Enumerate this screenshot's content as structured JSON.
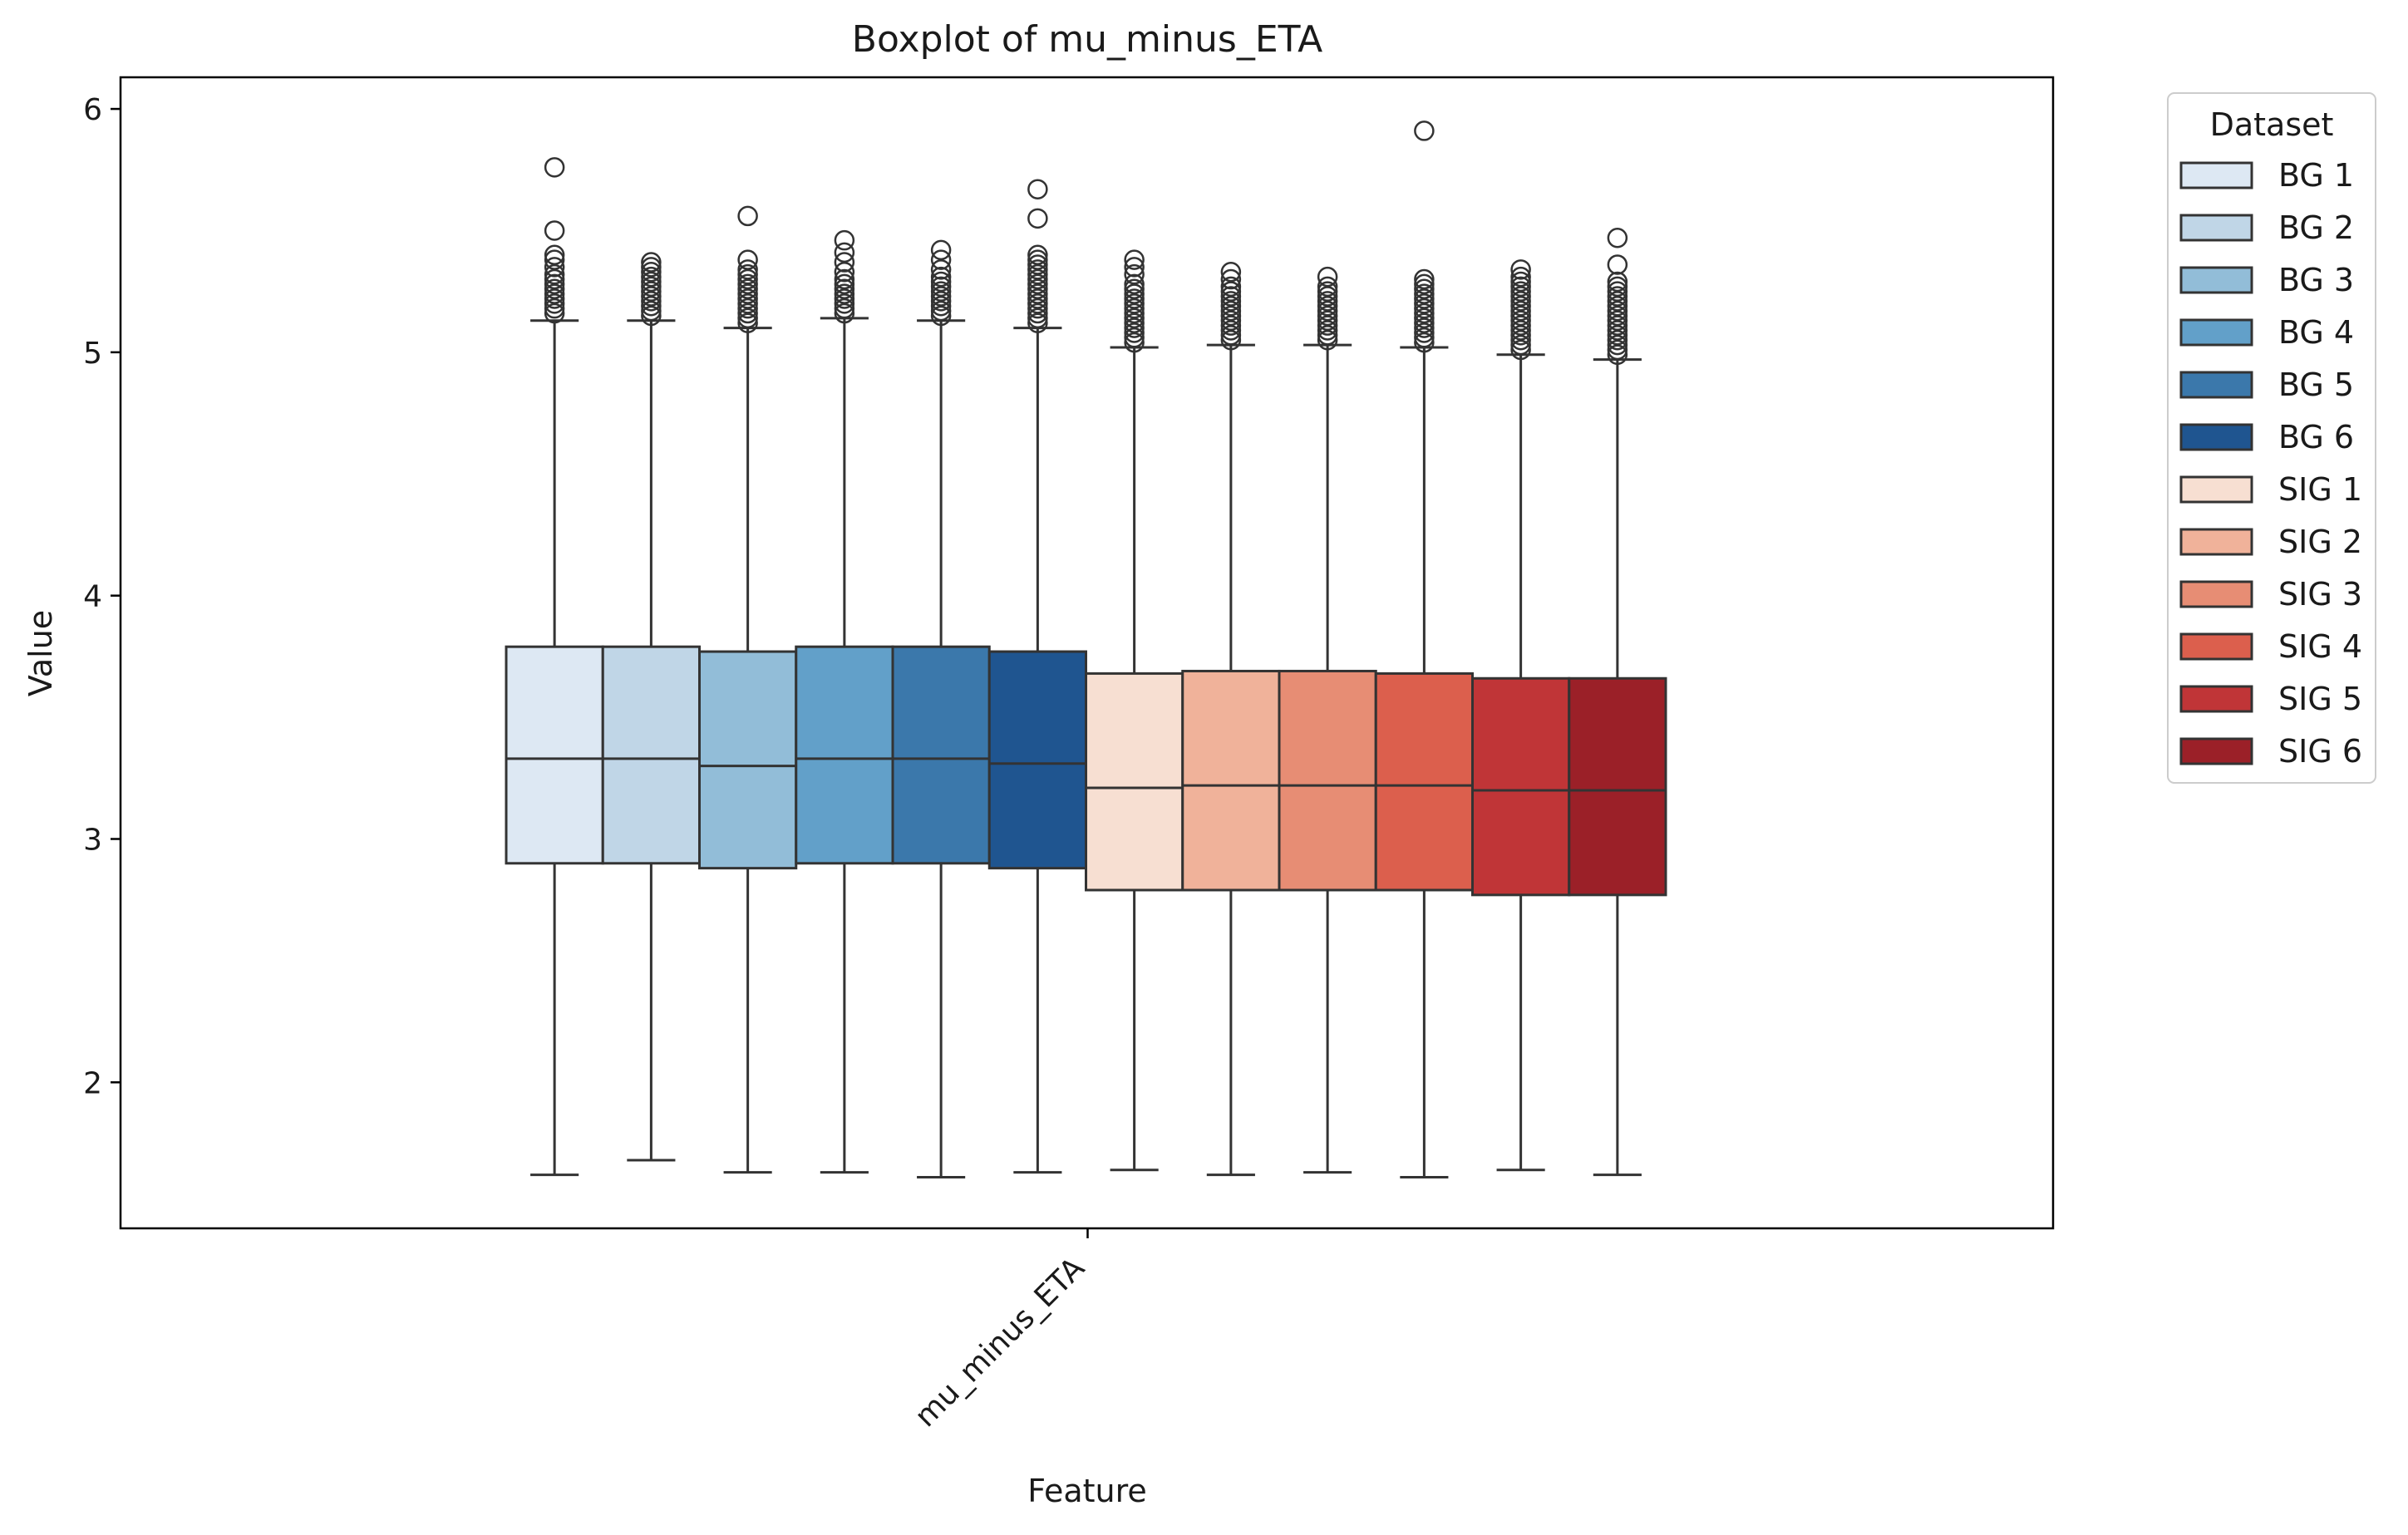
{
  "chart_data": {
    "type": "boxplot",
    "title": "Boxplot of mu_minus_ETA",
    "xlabel": "Feature",
    "ylabel": "Value",
    "categories": [
      "mu_minus_ETA"
    ],
    "ylim": [
      1.4,
      6.13
    ],
    "yticks": [
      "2",
      "3",
      "4",
      "5",
      "6"
    ],
    "grid": false,
    "legend": {
      "title": "Dataset",
      "placement": "outside-right-top"
    },
    "series": [
      {
        "name": "BG 1",
        "color": "#dde8f3",
        "whisker_low": 1.62,
        "q1": 2.9,
        "median": 3.33,
        "q3": 3.79,
        "whisker_high": 5.13,
        "outliers": [
          5.16,
          5.18,
          5.2,
          5.22,
          5.24,
          5.26,
          5.28,
          5.3,
          5.32,
          5.35,
          5.38,
          5.4,
          5.5,
          5.76
        ]
      },
      {
        "name": "BG 2",
        "color": "#c0d6e7",
        "whisker_low": 1.68,
        "q1": 2.9,
        "median": 3.33,
        "q3": 3.79,
        "whisker_high": 5.13,
        "outliers": [
          5.15,
          5.17,
          5.19,
          5.21,
          5.23,
          5.25,
          5.27,
          5.29,
          5.31,
          5.33,
          5.35,
          5.37
        ]
      },
      {
        "name": "BG 3",
        "color": "#92bdd8",
        "whisker_low": 1.63,
        "q1": 2.88,
        "median": 3.3,
        "q3": 3.77,
        "whisker_high": 5.1,
        "outliers": [
          5.12,
          5.14,
          5.16,
          5.18,
          5.2,
          5.22,
          5.24,
          5.26,
          5.28,
          5.3,
          5.32,
          5.34,
          5.38,
          5.56
        ]
      },
      {
        "name": "BG 4",
        "color": "#62a0c9",
        "whisker_low": 1.63,
        "q1": 2.9,
        "median": 3.33,
        "q3": 3.79,
        "whisker_high": 5.14,
        "outliers": [
          5.16,
          5.18,
          5.2,
          5.22,
          5.24,
          5.26,
          5.28,
          5.3,
          5.33,
          5.37,
          5.41,
          5.46
        ]
      },
      {
        "name": "BG 5",
        "color": "#3b78ab",
        "whisker_low": 1.61,
        "q1": 2.9,
        "median": 3.33,
        "q3": 3.79,
        "whisker_high": 5.13,
        "outliers": [
          5.15,
          5.17,
          5.19,
          5.21,
          5.23,
          5.25,
          5.27,
          5.29,
          5.31,
          5.34,
          5.38,
          5.42
        ]
      },
      {
        "name": "BG 6",
        "color": "#1f5590",
        "whisker_low": 1.63,
        "q1": 2.88,
        "median": 3.31,
        "q3": 3.77,
        "whisker_high": 5.1,
        "outliers": [
          5.12,
          5.14,
          5.16,
          5.18,
          5.2,
          5.22,
          5.24,
          5.26,
          5.28,
          5.3,
          5.32,
          5.34,
          5.36,
          5.38,
          5.4,
          5.55,
          5.67
        ]
      },
      {
        "name": "SIG 1",
        "color": "#f7dfd2",
        "whisker_low": 1.64,
        "q1": 2.79,
        "median": 3.21,
        "q3": 3.68,
        "whisker_high": 5.02,
        "outliers": [
          5.04,
          5.06,
          5.08,
          5.1,
          5.12,
          5.14,
          5.16,
          5.18,
          5.2,
          5.22,
          5.24,
          5.26,
          5.28,
          5.32,
          5.35,
          5.38
        ]
      },
      {
        "name": "SIG 2",
        "color": "#f0b29a",
        "whisker_low": 1.62,
        "q1": 2.79,
        "median": 3.22,
        "q3": 3.69,
        "whisker_high": 5.03,
        "outliers": [
          5.05,
          5.07,
          5.09,
          5.11,
          5.13,
          5.15,
          5.17,
          5.19,
          5.21,
          5.23,
          5.25,
          5.27,
          5.3,
          5.33
        ]
      },
      {
        "name": "SIG 3",
        "color": "#e78d74",
        "whisker_low": 1.63,
        "q1": 2.79,
        "median": 3.22,
        "q3": 3.69,
        "whisker_high": 5.03,
        "outliers": [
          5.05,
          5.07,
          5.09,
          5.11,
          5.13,
          5.15,
          5.17,
          5.19,
          5.21,
          5.23,
          5.25,
          5.27,
          5.31
        ]
      },
      {
        "name": "SIG 4",
        "color": "#dc5f4d",
        "whisker_low": 1.61,
        "q1": 2.79,
        "median": 3.22,
        "q3": 3.68,
        "whisker_high": 5.02,
        "outliers": [
          5.04,
          5.06,
          5.08,
          5.1,
          5.12,
          5.14,
          5.16,
          5.18,
          5.2,
          5.22,
          5.24,
          5.26,
          5.28,
          5.3,
          5.91
        ]
      },
      {
        "name": "SIG 5",
        "color": "#c03537",
        "whisker_low": 1.64,
        "q1": 2.77,
        "median": 3.2,
        "q3": 3.66,
        "whisker_high": 4.99,
        "outliers": [
          5.01,
          5.03,
          5.05,
          5.07,
          5.09,
          5.11,
          5.13,
          5.15,
          5.17,
          5.19,
          5.21,
          5.23,
          5.25,
          5.27,
          5.29,
          5.31,
          5.34
        ]
      },
      {
        "name": "SIG 6",
        "color": "#9b2028",
        "whisker_low": 1.62,
        "q1": 2.77,
        "median": 3.2,
        "q3": 3.66,
        "whisker_high": 4.97,
        "outliers": [
          4.99,
          5.01,
          5.03,
          5.05,
          5.07,
          5.09,
          5.11,
          5.13,
          5.15,
          5.17,
          5.19,
          5.21,
          5.23,
          5.25,
          5.27,
          5.29,
          5.36,
          5.47
        ]
      }
    ]
  }
}
